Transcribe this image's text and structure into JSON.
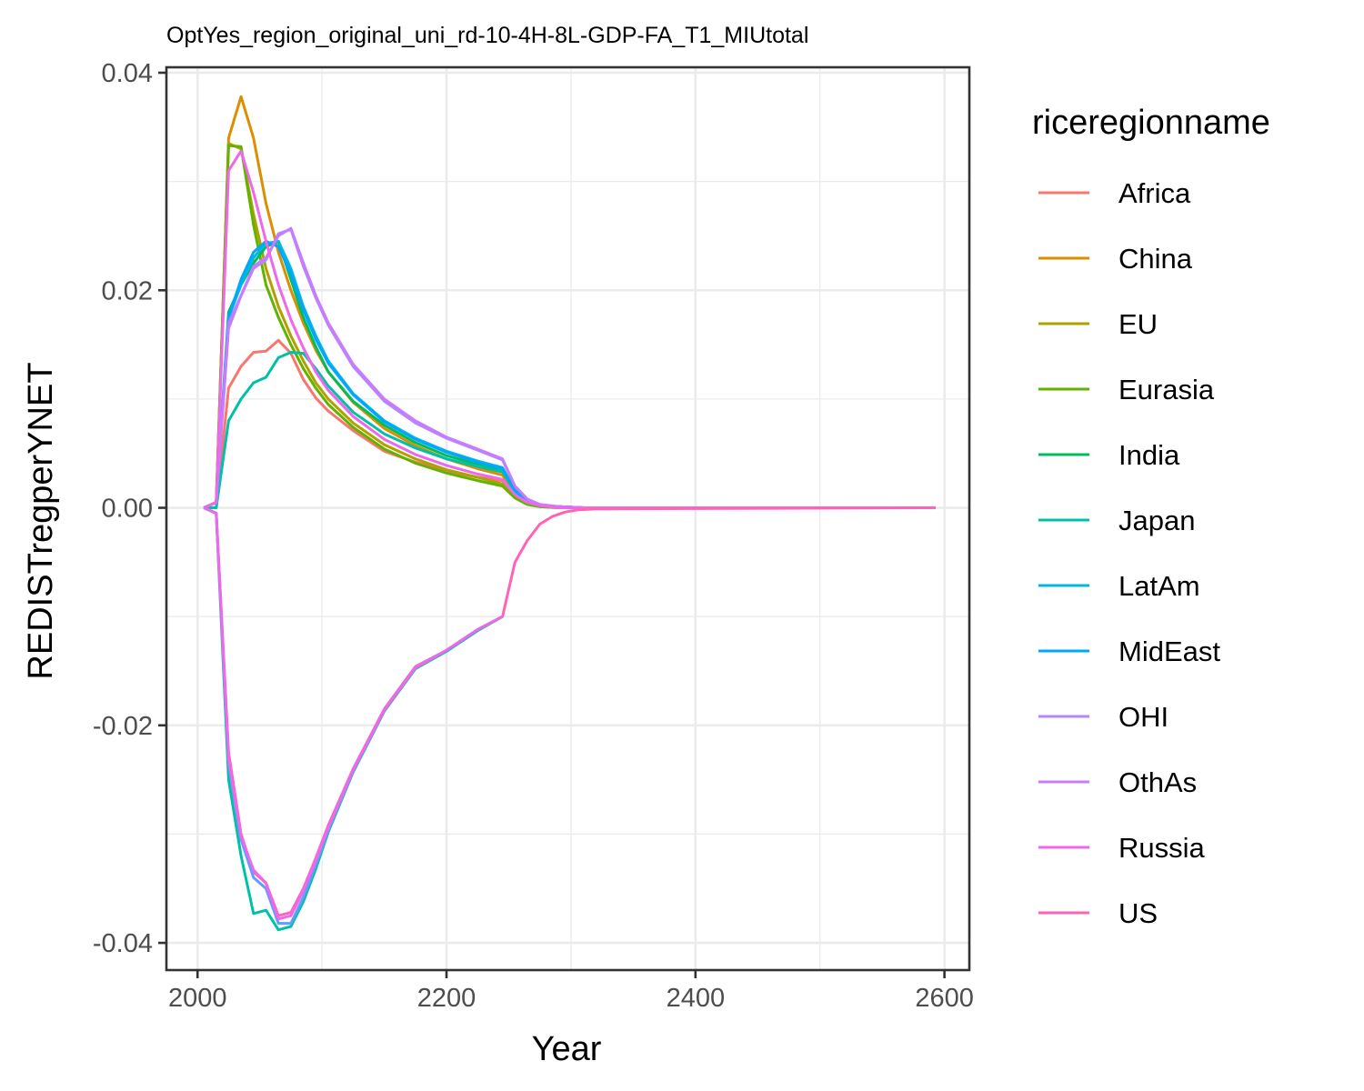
{
  "chart_data": {
    "type": "line",
    "title": "OptYes_region_original_uni_rd-10-4H-8L-GDP-FA_T1_MIUtotal",
    "xlabel": "Year",
    "ylabel": "REDISTregperYNET",
    "xlim": [
      1975,
      2620
    ],
    "ylim": [
      -0.0425,
      0.0405
    ],
    "xticks": [
      2000,
      2200,
      2400,
      2600
    ],
    "xtick_labels": [
      "2000",
      "2200",
      "2400",
      "2600"
    ],
    "yticks": [
      -0.04,
      -0.02,
      0.0,
      0.02,
      0.04
    ],
    "ytick_labels": [
      "-0.04",
      "-0.02",
      "0.00",
      "0.02",
      "0.04"
    ],
    "grid": true,
    "legend_title": "riceregionname",
    "legend_position": "right",
    "series": [
      {
        "name": "Africa",
        "color": "#F8766D",
        "x": [
          2005,
          2015,
          2025,
          2035,
          2045,
          2055,
          2065,
          2075,
          2085,
          2095,
          2105,
          2125,
          2150,
          2175,
          2200,
          2225,
          2245,
          2255,
          2265,
          2275,
          2290,
          2310,
          2330,
          2593
        ],
        "y": [
          0,
          0,
          0.011,
          0.013,
          0.0143,
          0.0144,
          0.0154,
          0.0142,
          0.0118,
          0.0101,
          0.0089,
          0.0071,
          0.0052,
          0.0042,
          0.0034,
          0.0028,
          0.0025,
          0.0012,
          0.0005,
          0.0002,
          0.0001,
          0,
          0,
          0
        ]
      },
      {
        "name": "China",
        "color": "#DB8E00",
        "x": [
          2005,
          2015,
          2025,
          2035,
          2045,
          2055,
          2065,
          2075,
          2085,
          2095,
          2105,
          2125,
          2150,
          2175,
          2200,
          2225,
          2245,
          2255,
          2265,
          2275,
          2290,
          2310,
          2330,
          2593
        ],
        "y": [
          0,
          0.0005,
          0.034,
          0.0378,
          0.034,
          0.028,
          0.0235,
          0.02,
          0.017,
          0.0145,
          0.0125,
          0.0097,
          0.0073,
          0.0057,
          0.0045,
          0.0036,
          0.003,
          0.0013,
          0.0005,
          0.0002,
          0.0001,
          0,
          0,
          0
        ]
      },
      {
        "name": "EU",
        "color": "#AEA200",
        "x": [
          2005,
          2015,
          2025,
          2035,
          2045,
          2055,
          2065,
          2075,
          2085,
          2095,
          2105,
          2125,
          2150,
          2175,
          2200,
          2225,
          2245,
          2255,
          2265,
          2275,
          2290,
          2310,
          2330,
          2593
        ],
        "y": [
          0,
          0.0005,
          0.0335,
          0.033,
          0.027,
          0.022,
          0.0185,
          0.0158,
          0.0135,
          0.0115,
          0.01,
          0.0078,
          0.0058,
          0.0045,
          0.0035,
          0.0028,
          0.0022,
          0.001,
          0.0004,
          0.0001,
          0,
          0,
          0,
          0
        ]
      },
      {
        "name": "Eurasia",
        "color": "#64B200",
        "x": [
          2005,
          2015,
          2025,
          2035,
          2045,
          2055,
          2065,
          2075,
          2085,
          2095,
          2105,
          2125,
          2150,
          2175,
          2200,
          2225,
          2245,
          2255,
          2265,
          2275,
          2290,
          2310,
          2330,
          2593
        ],
        "y": [
          0,
          0.0005,
          0.0333,
          0.0332,
          0.026,
          0.0205,
          0.0175,
          0.015,
          0.0128,
          0.011,
          0.0095,
          0.0074,
          0.0054,
          0.0041,
          0.0032,
          0.0025,
          0.002,
          0.0009,
          0.0003,
          0.0001,
          0,
          0,
          0,
          0
        ]
      },
      {
        "name": "India",
        "color": "#00BD5C",
        "x": [
          2005,
          2015,
          2025,
          2035,
          2045,
          2055,
          2065,
          2075,
          2085,
          2095,
          2105,
          2125,
          2150,
          2175,
          2200,
          2225,
          2245,
          2255,
          2265,
          2275,
          2290,
          2310,
          2330,
          2593
        ],
        "y": [
          0,
          0.0005,
          0.018,
          0.0205,
          0.0225,
          0.024,
          0.0245,
          0.021,
          0.0175,
          0.0148,
          0.0125,
          0.0098,
          0.0076,
          0.006,
          0.0048,
          0.004,
          0.0034,
          0.0015,
          0.0006,
          0.0002,
          0.0001,
          0,
          0,
          0
        ]
      },
      {
        "name": "Japan",
        "color": "#00C1A7",
        "x": [
          2005,
          2015,
          2025,
          2035,
          2045,
          2055,
          2065,
          2075,
          2085,
          2095,
          2105,
          2125,
          2150,
          2175,
          2200,
          2225,
          2245,
          2255,
          2265,
          2275,
          2290,
          2310,
          2330,
          2593
        ],
        "y": [
          0,
          0,
          0.008,
          0.01,
          0.0115,
          0.012,
          0.0138,
          0.0143,
          0.0142,
          0.0128,
          0.0112,
          0.0088,
          0.0068,
          0.0055,
          0.0045,
          0.0038,
          0.0033,
          0.0015,
          0.0006,
          0.0002,
          0.0001,
          0,
          0,
          0
        ]
      },
      {
        "name": "LatAm",
        "color": "#00BADE",
        "x": [
          2005,
          2015,
          2025,
          2035,
          2045,
          2055,
          2065,
          2075,
          2085,
          2095,
          2105,
          2125,
          2150,
          2175,
          2200,
          2225,
          2245,
          2255,
          2265,
          2275,
          2290,
          2310,
          2330,
          2593
        ],
        "y": [
          0,
          0.0005,
          0.0175,
          0.0205,
          0.023,
          0.0243,
          0.0245,
          0.022,
          0.0185,
          0.0158,
          0.0135,
          0.0105,
          0.008,
          0.0064,
          0.0052,
          0.0043,
          0.0037,
          0.0016,
          0.0006,
          0.0002,
          0.0001,
          0,
          0,
          0
        ]
      },
      {
        "name": "MidEast",
        "color": "#00A6FF",
        "x": [
          2005,
          2015,
          2025,
          2035,
          2045,
          2055,
          2065,
          2075,
          2085,
          2095,
          2105,
          2125,
          2150,
          2175,
          2200,
          2225,
          2245,
          2255,
          2265,
          2275,
          2290,
          2310,
          2330,
          2593
        ],
        "y": [
          0,
          0.0005,
          0.0175,
          0.021,
          0.0235,
          0.0245,
          0.024,
          0.0215,
          0.0182,
          0.0155,
          0.0133,
          0.0104,
          0.0079,
          0.0063,
          0.0051,
          0.0042,
          0.0036,
          0.0016,
          0.0006,
          0.0002,
          0.0001,
          0,
          0,
          0
        ]
      },
      {
        "name": "OHI",
        "color": "#B385FF",
        "x": [
          2005,
          2015,
          2025,
          2035,
          2045,
          2055,
          2065,
          2075,
          2085,
          2095,
          2105,
          2125,
          2150,
          2175,
          2200,
          2225,
          2245,
          2255,
          2265,
          2275,
          2290,
          2310,
          2330,
          2593
        ],
        "y": [
          0,
          0.0005,
          0.017,
          0.0195,
          0.022,
          0.0228,
          0.0252,
          0.0256,
          0.0222,
          0.0193,
          0.0168,
          0.013,
          0.0098,
          0.0078,
          0.0064,
          0.0053,
          0.0044,
          0.002,
          0.0008,
          0.0003,
          0.0001,
          0,
          0,
          0
        ]
      },
      {
        "name": "OthAs",
        "color": "#C77CFF",
        "x": [
          2005,
          2015,
          2025,
          2035,
          2045,
          2055,
          2065,
          2075,
          2085,
          2095,
          2105,
          2125,
          2150,
          2175,
          2200,
          2225,
          2245,
          2255,
          2265,
          2275,
          2290,
          2310,
          2330,
          2593
        ],
        "y": [
          0,
          0.0005,
          0.0165,
          0.0195,
          0.0222,
          0.023,
          0.025,
          0.0257,
          0.0225,
          0.0195,
          0.017,
          0.0132,
          0.01,
          0.008,
          0.0065,
          0.0054,
          0.0045,
          0.002,
          0.0008,
          0.0003,
          0.0001,
          0,
          0,
          0
        ]
      },
      {
        "name": "Russia",
        "color": "#EF67EB",
        "x": [
          2005,
          2015,
          2025,
          2035,
          2045,
          2055,
          2065,
          2075,
          2085,
          2095,
          2105,
          2125,
          2150,
          2175,
          2200,
          2225,
          2245,
          2255,
          2265,
          2275,
          2290,
          2310,
          2330,
          2593
        ],
        "y": [
          0,
          0.0005,
          0.031,
          0.0328,
          0.029,
          0.0245,
          0.0205,
          0.0173,
          0.0147,
          0.0125,
          0.0108,
          0.0084,
          0.0063,
          0.0049,
          0.0039,
          0.0031,
          0.0026,
          0.0012,
          0.0005,
          0.0002,
          0,
          0,
          0,
          0
        ]
      },
      {
        "name": "US",
        "color": "#FF63B6",
        "x": [
          2005,
          2015,
          2025,
          2035,
          2045,
          2055,
          2065,
          2075,
          2085,
          2095,
          2105,
          2125,
          2150,
          2175,
          2200,
          2225,
          2245,
          2255,
          2265,
          2275,
          2285,
          2295,
          2305,
          2320,
          2593
        ],
        "y": [
          0,
          -0.0005,
          -0.0225,
          -0.03,
          -0.0335,
          -0.0345,
          -0.0375,
          -0.0372,
          -0.035,
          -0.0322,
          -0.0292,
          -0.024,
          -0.0185,
          -0.0146,
          -0.0131,
          -0.0112,
          -0.01,
          -0.005,
          -0.003,
          -0.0015,
          -0.0008,
          -0.0004,
          -0.0002,
          -0.0001,
          0
        ]
      },
      {
        "name": "",
        "color": "#00C1A7",
        "x": [
          2005,
          2015,
          2025,
          2035,
          2045,
          2055,
          2065,
          2075,
          2085,
          2095,
          2105,
          2125,
          2150,
          2175,
          2200,
          2225,
          2245
        ],
        "y": [
          0,
          -0.0005,
          -0.025,
          -0.032,
          -0.0373,
          -0.037,
          -0.0388,
          -0.0385,
          -0.0362,
          -0.0332,
          -0.0298,
          -0.0243,
          -0.0187,
          -0.0148,
          -0.0132,
          -0.0113,
          -0.01
        ]
      },
      {
        "name": "",
        "color": "#619CFF",
        "x": [
          2005,
          2015,
          2025,
          2035,
          2045,
          2055,
          2065,
          2075,
          2085,
          2095,
          2105,
          2125,
          2150,
          2175,
          2200,
          2225,
          2245
        ],
        "y": [
          0,
          -0.0005,
          -0.0235,
          -0.0305,
          -0.034,
          -0.035,
          -0.0382,
          -0.0382,
          -0.0358,
          -0.0328,
          -0.0296,
          -0.0242,
          -0.0186,
          -0.0147,
          -0.0131,
          -0.0112,
          -0.01
        ]
      },
      {
        "name": "",
        "color": "#EF67EB",
        "x": [
          2005,
          2015,
          2025,
          2035,
          2045,
          2055,
          2065,
          2075,
          2085,
          2095,
          2105,
          2125,
          2150,
          2175,
          2200,
          2225,
          2245
        ],
        "y": [
          0,
          -0.0005,
          -0.023,
          -0.0302,
          -0.0333,
          -0.0345,
          -0.0378,
          -0.0375,
          -0.0352,
          -0.0324,
          -0.0294,
          -0.0241,
          -0.0186,
          -0.0147,
          -0.0131,
          -0.0112,
          -0.01
        ]
      }
    ]
  }
}
